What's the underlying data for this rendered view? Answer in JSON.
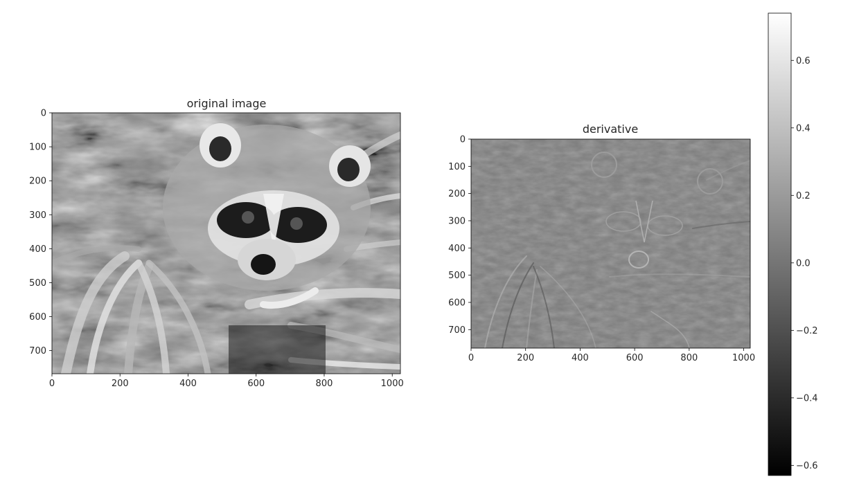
{
  "chart_data": [
    {
      "type": "heatmap",
      "title": "original image",
      "xlabel": "",
      "ylabel": "",
      "xlim": [
        0,
        1024
      ],
      "ylim": [
        768,
        0
      ],
      "xticks": [
        0,
        200,
        400,
        600,
        800,
        1000
      ],
      "yticks": [
        0,
        100,
        200,
        300,
        400,
        500,
        600,
        700
      ],
      "colormap": "gray",
      "image_content": "grayscale raccoon face photograph"
    },
    {
      "type": "heatmap",
      "title": "derivative",
      "xlabel": "",
      "ylabel": "",
      "xlim": [
        0,
        1024
      ],
      "ylim": [
        768,
        0
      ],
      "xticks": [
        0,
        200,
        400,
        600,
        800,
        1000
      ],
      "yticks": [
        0,
        100,
        200,
        300,
        400,
        500,
        600,
        700
      ],
      "colormap": "gray",
      "image_content": "derivative of the raccoon face image"
    }
  ],
  "colorbar": {
    "range": [
      -0.63,
      0.74
    ],
    "ticks": [
      "-0.6",
      "-0.4",
      "-0.2",
      "0.0",
      "0.2",
      "0.4",
      "0.6"
    ],
    "tick_values": [
      -0.6,
      -0.4,
      -0.2,
      0.0,
      0.2,
      0.4,
      0.6
    ],
    "colormap": "gray"
  },
  "colors": {
    "text": "#262626",
    "frame": "#000000",
    "mid_gray": "#7a7a7a"
  }
}
